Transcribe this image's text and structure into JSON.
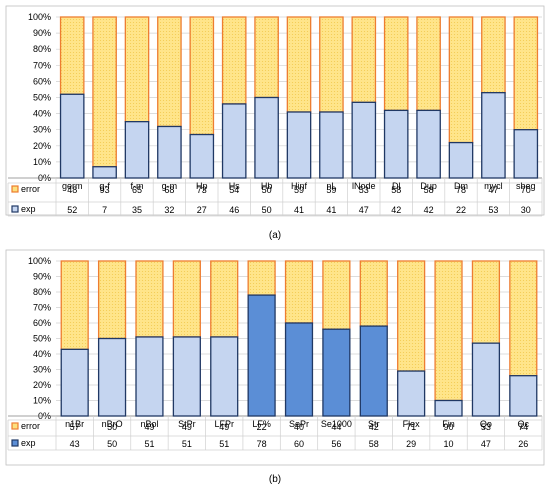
{
  "colors": {
    "error_fill": "#FFE58A",
    "error_dots": "#F2C94C",
    "error_border": "#ED7D31",
    "exp_fill_light": "#C5D5F0",
    "exp_fill_dark": "#5B8ED6",
    "exp_border": "#203864",
    "grid": "#D0D0D0",
    "axis": "#808080"
  },
  "chart_data": [
    {
      "type": "bar",
      "stacked": true,
      "caption": "(a)",
      "ylim": [
        0,
        100
      ],
      "y_ticks": [
        "0%",
        "10%",
        "20%",
        "30%",
        "40%",
        "50%",
        "60%",
        "70%",
        "80%",
        "90%",
        "100%"
      ],
      "categories": [
        "germ",
        "g-f",
        "f-m",
        "g-m",
        "Hp",
        "Hs",
        "Hb",
        "Hinf",
        "nL",
        "lNode",
        "Dl",
        "Dup",
        "Dm",
        "mycl",
        "sbeg"
      ],
      "series": [
        {
          "name": "exp",
          "values": [
            52,
            7,
            35,
            32,
            27,
            46,
            50,
            41,
            41,
            47,
            42,
            42,
            22,
            53,
            30
          ]
        },
        {
          "name": "error",
          "values": [
            48,
            93,
            65,
            68,
            73,
            54,
            50,
            59,
            59,
            53,
            58,
            58,
            78,
            47,
            70
          ]
        }
      ],
      "dark_exp_categories": [],
      "table_rows": [
        "error",
        "exp"
      ],
      "grid": true
    },
    {
      "type": "bar",
      "stacked": true,
      "caption": "(b)",
      "ylim": [
        0,
        100
      ],
      "y_ticks": [
        "0%",
        "10%",
        "20%",
        "30%",
        "40%",
        "50%",
        "60%",
        "70%",
        "80%",
        "90%",
        "100%"
      ],
      "categories": [
        "n1Br",
        "nBrO",
        "nBol",
        "StPr",
        "LFPr",
        "LF%",
        "SePr",
        "Se1000",
        "Str",
        "Flex",
        "Fin",
        "Qo",
        "Qc"
      ],
      "series": [
        {
          "name": "exp",
          "values": [
            43,
            50,
            51,
            51,
            51,
            78,
            60,
            56,
            58,
            29,
            10,
            47,
            26
          ]
        },
        {
          "name": "error",
          "values": [
            57,
            50,
            49,
            49,
            49,
            22,
            40,
            44,
            42,
            71,
            90,
            53,
            74
          ]
        }
      ],
      "dark_exp_categories": [
        "LF%",
        "SePr",
        "Se1000",
        "Str"
      ],
      "table_rows": [
        "error",
        "exp"
      ],
      "grid": true
    }
  ]
}
